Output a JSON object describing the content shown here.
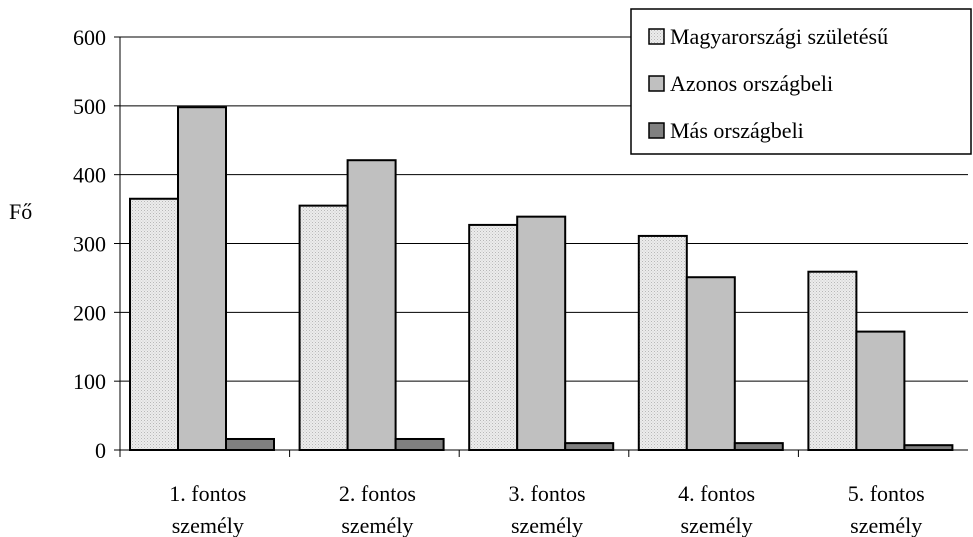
{
  "chart_data": {
    "type": "bar",
    "title": "",
    "xlabel": "",
    "ylabel": "Fő",
    "ylim": [
      0,
      600
    ],
    "yticks": [
      0,
      100,
      200,
      300,
      400,
      500,
      600
    ],
    "grid": true,
    "legend_position": "top-right",
    "categories": [
      [
        "1. fontos",
        "személy"
      ],
      [
        "2. fontos",
        "személy"
      ],
      [
        "3. fontos",
        "személy"
      ],
      [
        "4. fontos",
        "személy"
      ],
      [
        "5. fontos",
        "személy"
      ]
    ],
    "series": [
      {
        "name": "Magyarországi születésű",
        "color": "#e4e4e4",
        "pattern": "dotted",
        "values": [
          365,
          355,
          327,
          311,
          259
        ]
      },
      {
        "name": "Azonos országbeli",
        "color": "#c0c0c0",
        "pattern": "solid",
        "values": [
          498,
          421,
          339,
          251,
          172
        ]
      },
      {
        "name": "Más országbeli",
        "color": "#808080",
        "pattern": "solid",
        "values": [
          16,
          16,
          10,
          10,
          7
        ]
      }
    ]
  }
}
